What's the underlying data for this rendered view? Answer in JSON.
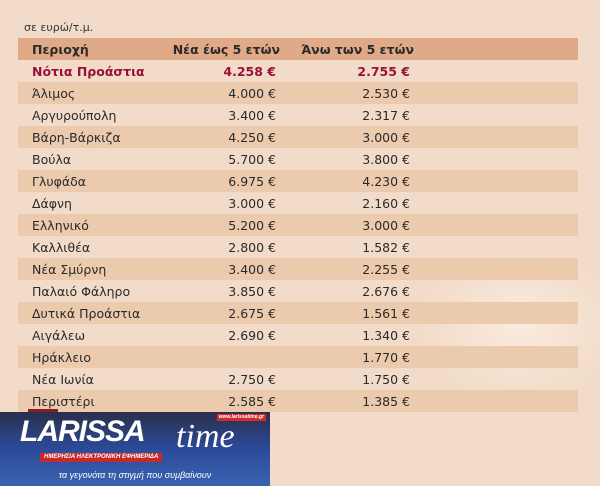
{
  "unit_label": "σε ευρώ/τ.μ.",
  "headers": [
    "Περιοχή",
    "Νέα έως 5 ετών",
    "Άνω των 5 ετών"
  ],
  "rows": [
    {
      "area": "Νότια Προάστια",
      "new": "4.258 €",
      "old": "2.755 €"
    },
    {
      "area": "Άλιμος",
      "new": "4.000 €",
      "old": "2.530 €"
    },
    {
      "area": "Αργυρούπολη",
      "new": "3.400 €",
      "old": "2.317 €"
    },
    {
      "area": "Βάρη-Βάρκιζα",
      "new": "4.250 €",
      "old": "3.000 €"
    },
    {
      "area": "Βούλα",
      "new": "5.700 €",
      "old": "3.800 €"
    },
    {
      "area": "Γλυφάδα",
      "new": "6.975 €",
      "old": "4.230 €"
    },
    {
      "area": "Δάφνη",
      "new": "3.000 €",
      "old": "2.160 €"
    },
    {
      "area": "Ελληνικό",
      "new": "5.200 €",
      "old": "3.000 €"
    },
    {
      "area": "Καλλιθέα",
      "new": "2.800 €",
      "old": "1.582 €"
    },
    {
      "area": "Νέα Σμύρνη",
      "new": "3.400 €",
      "old": "2.255 €"
    },
    {
      "area": "Παλαιό Φάληρο",
      "new": "3.850 €",
      "old": "2.676 €"
    },
    {
      "area": "Δυτικά Προάστια",
      "new": "2.675 €",
      "old": "1.561 €"
    },
    {
      "area": "Αιγάλεω",
      "new": "2.690 €",
      "old": "1.340 €"
    },
    {
      "area": "Ηράκλειο",
      "new": "",
      "old": "1.770 €"
    },
    {
      "area": "Νέα Ιωνία",
      "new": "2.750 €",
      "old": "1.750 €"
    },
    {
      "area": "Περιστέρι",
      "new": "2.585 €",
      "old": "1.385 €"
    }
  ],
  "highlight_color": "#9b1038",
  "logo": {
    "name": "LARISSA time",
    "url": "www.larissatime.gr",
    "subtitle": "ΗΜΕΡΗΣΙΑ ΗΛΕΚΤΡΟΝΙΚΗ ΕΦΗΜΕΡΙΔΑ",
    "slogan": "τα γεγονότα τη στιγμή που συμβαίνουν"
  }
}
